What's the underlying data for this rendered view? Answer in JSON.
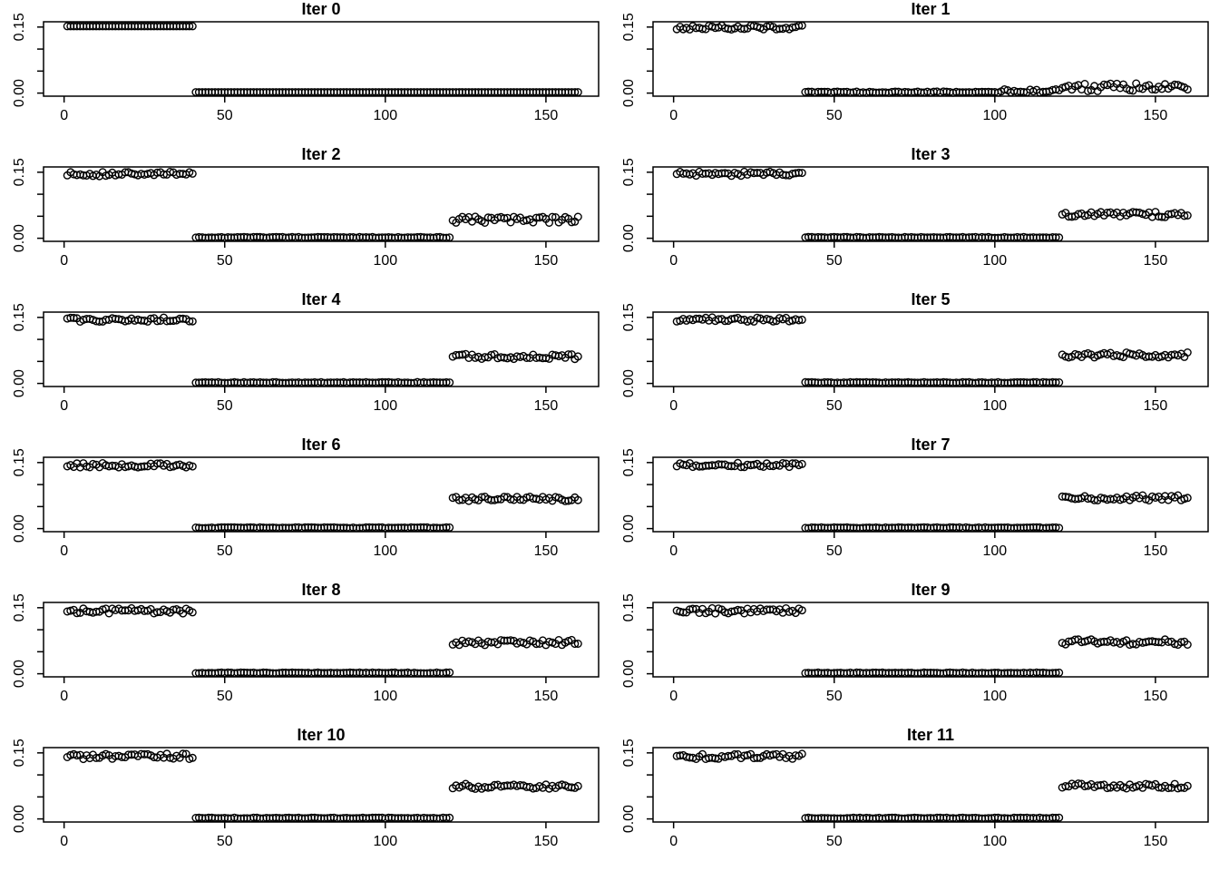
{
  "chart_data": {
    "type": "scatter",
    "title": "",
    "layout": {
      "rows": 6,
      "cols": 2,
      "grid": false,
      "legend": false,
      "background": "#ffffff"
    },
    "marker": {
      "shape": "open-circle",
      "color": "#000000",
      "radius_px": 3.8
    },
    "xlim": [
      -6.4,
      166.4
    ],
    "ylim": [
      -0.007,
      0.162
    ],
    "x_ticks": [
      {
        "value": 0,
        "label": "0"
      },
      {
        "value": 50,
        "label": "50"
      },
      {
        "value": 100,
        "label": "100"
      },
      {
        "value": 150,
        "label": "150"
      }
    ],
    "y_ticks": [
      {
        "value": 0.0,
        "label": "0.00"
      },
      {
        "value": 0.05,
        "label": ""
      },
      {
        "value": 0.1,
        "label": ""
      },
      {
        "value": 0.15,
        "label": "0.15"
      }
    ],
    "panels": [
      {
        "title": "Iter 0",
        "segments": [
          {
            "x_from": 1,
            "x_to": 40,
            "y_mean": 0.152,
            "y_noise": 0.0
          },
          {
            "x_from": 41,
            "x_to": 160,
            "y_mean": 0.002,
            "y_noise": 0.0
          }
        ]
      },
      {
        "title": "Iter 1",
        "segments": [
          {
            "x_from": 1,
            "x_to": 40,
            "y_mean": 0.149,
            "y_noise": 0.005
          },
          {
            "x_from": 41,
            "x_to": 100,
            "y_mean": 0.002,
            "y_noise": 0.0015
          },
          {
            "x_from": 101,
            "x_to": 120,
            "y_mean": 0.005,
            "y_noise": 0.004
          },
          {
            "x_from": 121,
            "x_to": 160,
            "y_mean": 0.013,
            "y_noise": 0.009
          }
        ]
      },
      {
        "title": "Iter 2",
        "segments": [
          {
            "x_from": 1,
            "x_to": 40,
            "y_mean": 0.146,
            "y_noise": 0.005
          },
          {
            "x_from": 41,
            "x_to": 120,
            "y_mean": 0.002,
            "y_noise": 0.001
          },
          {
            "x_from": 121,
            "x_to": 160,
            "y_mean": 0.042,
            "y_noise": 0.007
          }
        ]
      },
      {
        "title": "Iter 3",
        "segments": [
          {
            "x_from": 1,
            "x_to": 40,
            "y_mean": 0.146,
            "y_noise": 0.005
          },
          {
            "x_from": 41,
            "x_to": 120,
            "y_mean": 0.002,
            "y_noise": 0.001
          },
          {
            "x_from": 121,
            "x_to": 160,
            "y_mean": 0.054,
            "y_noise": 0.006
          }
        ]
      },
      {
        "title": "Iter 4",
        "segments": [
          {
            "x_from": 1,
            "x_to": 40,
            "y_mean": 0.145,
            "y_noise": 0.005
          },
          {
            "x_from": 41,
            "x_to": 120,
            "y_mean": 0.002,
            "y_noise": 0.001
          },
          {
            "x_from": 121,
            "x_to": 160,
            "y_mean": 0.061,
            "y_noise": 0.006
          }
        ]
      },
      {
        "title": "Iter 5",
        "segments": [
          {
            "x_from": 1,
            "x_to": 40,
            "y_mean": 0.145,
            "y_noise": 0.005
          },
          {
            "x_from": 41,
            "x_to": 120,
            "y_mean": 0.002,
            "y_noise": 0.001
          },
          {
            "x_from": 121,
            "x_to": 160,
            "y_mean": 0.065,
            "y_noise": 0.006
          }
        ]
      },
      {
        "title": "Iter 6",
        "segments": [
          {
            "x_from": 1,
            "x_to": 40,
            "y_mean": 0.144,
            "y_noise": 0.005
          },
          {
            "x_from": 41,
            "x_to": 120,
            "y_mean": 0.002,
            "y_noise": 0.001
          },
          {
            "x_from": 121,
            "x_to": 160,
            "y_mean": 0.068,
            "y_noise": 0.006
          }
        ]
      },
      {
        "title": "Iter 7",
        "segments": [
          {
            "x_from": 1,
            "x_to": 40,
            "y_mean": 0.144,
            "y_noise": 0.005
          },
          {
            "x_from": 41,
            "x_to": 120,
            "y_mean": 0.002,
            "y_noise": 0.001
          },
          {
            "x_from": 121,
            "x_to": 160,
            "y_mean": 0.07,
            "y_noise": 0.006
          }
        ]
      },
      {
        "title": "Iter 8",
        "segments": [
          {
            "x_from": 1,
            "x_to": 40,
            "y_mean": 0.143,
            "y_noise": 0.006
          },
          {
            "x_from": 41,
            "x_to": 120,
            "y_mean": 0.002,
            "y_noise": 0.001
          },
          {
            "x_from": 121,
            "x_to": 160,
            "y_mean": 0.071,
            "y_noise": 0.006
          }
        ]
      },
      {
        "title": "Iter 9",
        "segments": [
          {
            "x_from": 1,
            "x_to": 40,
            "y_mean": 0.143,
            "y_noise": 0.006
          },
          {
            "x_from": 41,
            "x_to": 120,
            "y_mean": 0.002,
            "y_noise": 0.001
          },
          {
            "x_from": 121,
            "x_to": 160,
            "y_mean": 0.072,
            "y_noise": 0.006
          }
        ]
      },
      {
        "title": "Iter 10",
        "segments": [
          {
            "x_from": 1,
            "x_to": 40,
            "y_mean": 0.142,
            "y_noise": 0.006
          },
          {
            "x_from": 41,
            "x_to": 120,
            "y_mean": 0.002,
            "y_noise": 0.001
          },
          {
            "x_from": 121,
            "x_to": 160,
            "y_mean": 0.074,
            "y_noise": 0.006
          }
        ]
      },
      {
        "title": "Iter 11",
        "segments": [
          {
            "x_from": 1,
            "x_to": 40,
            "y_mean": 0.142,
            "y_noise": 0.006
          },
          {
            "x_from": 41,
            "x_to": 120,
            "y_mean": 0.002,
            "y_noise": 0.001
          },
          {
            "x_from": 121,
            "x_to": 160,
            "y_mean": 0.075,
            "y_noise": 0.006
          }
        ]
      }
    ]
  }
}
